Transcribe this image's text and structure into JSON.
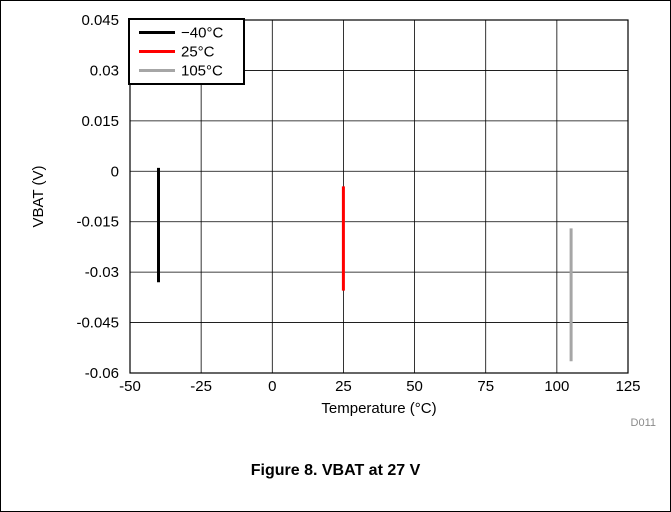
{
  "chart_data": {
    "type": "line",
    "title": "",
    "xlabel": "Temperature (°C)",
    "ylabel": "VBAT (V)",
    "xlim": [
      -50,
      125
    ],
    "ylim": [
      -0.06,
      0.045
    ],
    "x_ticks": [
      -50,
      -25,
      0,
      25,
      50,
      75,
      100,
      125
    ],
    "x_tick_labels": [
      "-50",
      "-25",
      "0",
      "25",
      "50",
      "75",
      "100",
      "125"
    ],
    "y_ticks": [
      0.045,
      0.03,
      0.015,
      0,
      -0.015,
      -0.03,
      -0.045,
      -0.06
    ],
    "y_tick_labels": [
      "0.045",
      "0.03",
      "0.015",
      "0",
      "-0.015",
      "-0.03",
      "-0.045",
      "-0.06"
    ],
    "grid": true,
    "legend_position": "top-left",
    "series": [
      {
        "name": "−40°C",
        "color": "#000000",
        "x": [
          -40,
          -40
        ],
        "y": [
          0.001,
          -0.033
        ]
      },
      {
        "name": "25°C",
        "color": "#ff0000",
        "x": [
          25,
          25
        ],
        "y": [
          -0.0045,
          -0.0355
        ]
      },
      {
        "name": "105°C",
        "color": "#a6a6a6",
        "x": [
          105,
          105
        ],
        "y": [
          -0.017,
          -0.0565
        ]
      }
    ],
    "figure_code": "D011"
  },
  "caption": "Figure 8. VBAT at 27 V"
}
